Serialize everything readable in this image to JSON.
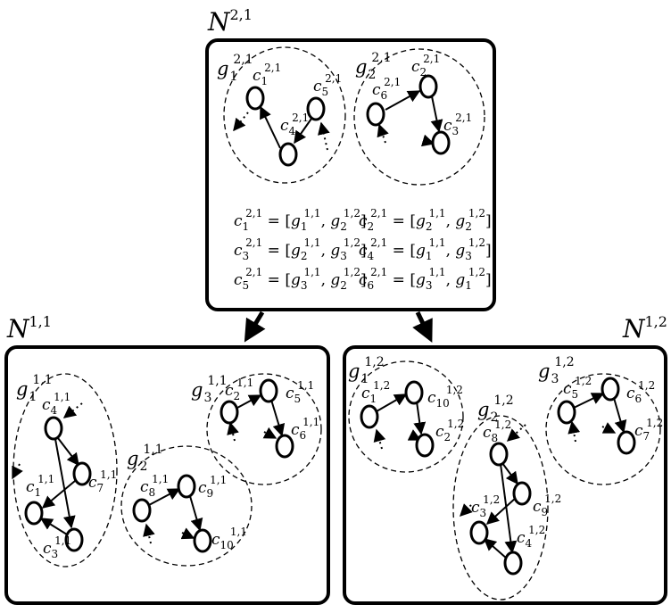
{
  "boxes": {
    "top": {
      "letter": "N",
      "sup": "2,1"
    },
    "left": {
      "letter": "N",
      "sup": "1,1"
    },
    "right": {
      "letter": "N",
      "sup": "1,2"
    }
  },
  "top_groups": {
    "g1": {
      "letter": "g",
      "sub": "1",
      "sup": "2,1"
    },
    "g2": {
      "letter": "g",
      "sub": "2",
      "sup": "2,1"
    }
  },
  "top_nodes": {
    "c1": {
      "letter": "c",
      "sub": "1",
      "sup": "2,1"
    },
    "c2": {
      "letter": "c",
      "sub": "2",
      "sup": "2,1"
    },
    "c3": {
      "letter": "c",
      "sub": "3",
      "sup": "2,1"
    },
    "c4": {
      "letter": "c",
      "sub": "4",
      "sup": "2,1"
    },
    "c5": {
      "letter": "c",
      "sub": "5",
      "sup": "2,1"
    },
    "c6": {
      "letter": "c",
      "sub": "6",
      "sup": "2,1"
    }
  },
  "formulas": [
    {
      "lhs": {
        "sub": "1",
        "sup": "2,1"
      },
      "a": {
        "sub": "1",
        "sup": "1,1"
      },
      "b": {
        "sub": "2",
        "sup": "1,2"
      }
    },
    {
      "lhs": {
        "sub": "2",
        "sup": "2,1"
      },
      "a": {
        "sub": "2",
        "sup": "1,1"
      },
      "b": {
        "sub": "2",
        "sup": "1,2"
      }
    },
    {
      "lhs": {
        "sub": "3",
        "sup": "2,1"
      },
      "a": {
        "sub": "2",
        "sup": "1,1"
      },
      "b": {
        "sub": "3",
        "sup": "1,2"
      }
    },
    {
      "lhs": {
        "sub": "4",
        "sup": "2,1"
      },
      "a": {
        "sub": "1",
        "sup": "1,1"
      },
      "b": {
        "sub": "3",
        "sup": "1,2"
      }
    },
    {
      "lhs": {
        "sub": "5",
        "sup": "2,1"
      },
      "a": {
        "sub": "3",
        "sup": "1,1"
      },
      "b": {
        "sub": "2",
        "sup": "1,2"
      }
    },
    {
      "lhs": {
        "sub": "6",
        "sup": "2,1"
      },
      "a": {
        "sub": "3",
        "sup": "1,1"
      },
      "b": {
        "sub": "1",
        "sup": "1,2"
      }
    }
  ],
  "left_groups": {
    "g1": {
      "letter": "g",
      "sub": "1",
      "sup": "1,1"
    },
    "g2": {
      "letter": "g",
      "sub": "2",
      "sup": "1,1"
    },
    "g3": {
      "letter": "g",
      "sub": "3",
      "sup": "1,1"
    }
  },
  "left_nodes": {
    "c1": {
      "letter": "c",
      "sub": "1",
      "sup": "1,1"
    },
    "c2": {
      "letter": "c",
      "sub": "2",
      "sup": "1,1"
    },
    "c3": {
      "letter": "c",
      "sub": "3",
      "sup": "1,1"
    },
    "c4": {
      "letter": "c",
      "sub": "4",
      "sup": "1,1"
    },
    "c5": {
      "letter": "c",
      "sub": "5",
      "sup": "1,1"
    },
    "c6": {
      "letter": "c",
      "sub": "6",
      "sup": "1,1"
    },
    "c7": {
      "letter": "c",
      "sub": "7",
      "sup": "1,1"
    },
    "c8": {
      "letter": "c",
      "sub": "8",
      "sup": "1,1"
    },
    "c9": {
      "letter": "c",
      "sub": "9",
      "sup": "1,1"
    },
    "c10": {
      "letter": "c",
      "sub": "10",
      "sup": "1,1"
    }
  },
  "right_groups": {
    "g1": {
      "letter": "g",
      "sub": "1",
      "sup": "1,2"
    },
    "g2": {
      "letter": "g",
      "sub": "2",
      "sup": "1,2"
    },
    "g3": {
      "letter": "g",
      "sub": "3",
      "sup": "1,2"
    }
  },
  "right_nodes": {
    "c1": {
      "letter": "c",
      "sub": "1",
      "sup": "1,2"
    },
    "c2": {
      "letter": "c",
      "sub": "2",
      "sup": "1,2"
    },
    "c3": {
      "letter": "c",
      "sub": "3",
      "sup": "1,2"
    },
    "c4": {
      "letter": "c",
      "sub": "4",
      "sup": "1,2"
    },
    "c5": {
      "letter": "c",
      "sub": "5",
      "sup": "1,2"
    },
    "c6": {
      "letter": "c",
      "sub": "6",
      "sup": "1,2"
    },
    "c7": {
      "letter": "c",
      "sub": "7",
      "sup": "1,2"
    },
    "c8": {
      "letter": "c",
      "sub": "8",
      "sup": "1,2"
    },
    "c9": {
      "letter": "c",
      "sub": "9",
      "sup": "1,2"
    },
    "c10": {
      "letter": "c",
      "sub": "10",
      "sup": "1,2"
    }
  }
}
